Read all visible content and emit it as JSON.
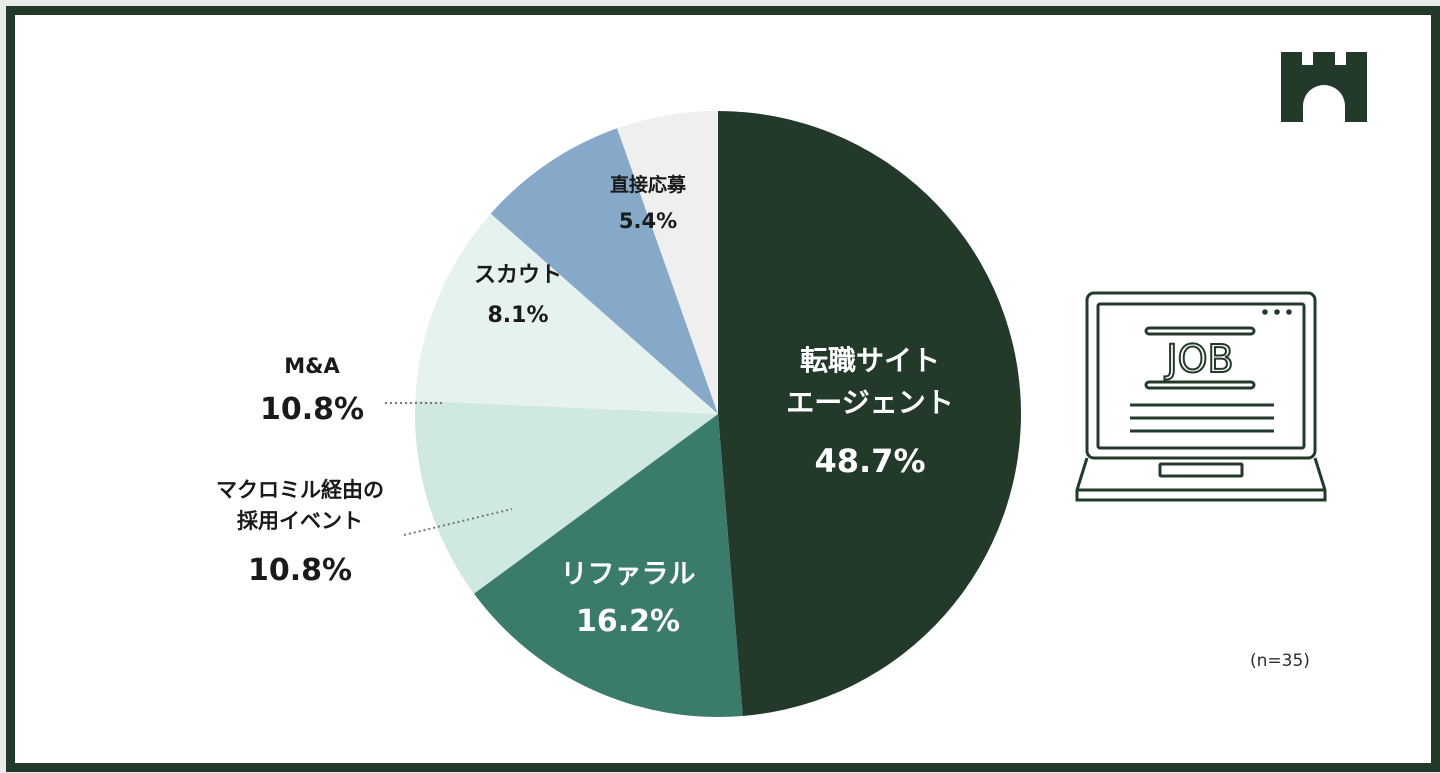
{
  "chart_data": {
    "type": "pie",
    "start_angle_deg": 0,
    "direction": "clockwise",
    "sample_note": "(n=35)",
    "slices": [
      {
        "label": "転職サイト\nエージェント",
        "display": "48.7%",
        "value": 48.7,
        "color": "#233a2a",
        "label_color": "#ffffff"
      },
      {
        "label": "リファラル",
        "display": "16.2%",
        "value": 16.2,
        "color": "#3a7b6c",
        "label_color": "#ffffff"
      },
      {
        "label": "マクロミル経由の\n採用イベント",
        "display": "10.8%",
        "value": 10.8,
        "color": "#cfe8e1",
        "label_color": "#1a1a1a"
      },
      {
        "label": "M&A",
        "display": "10.8%",
        "value": 10.8,
        "color": "#e6f2f0",
        "label_color": "#1a1a1a"
      },
      {
        "label": "スカウト",
        "display": "8.1%",
        "value": 8.1,
        "color": "#86a9c9",
        "label_color": "#1a1a1a"
      },
      {
        "label": "直接応募",
        "display": "5.4%",
        "value": 5.4,
        "color": "#efefef",
        "label_color": "#1a1a1a"
      }
    ]
  },
  "laptop": {
    "screen_text": "JOB"
  },
  "colors": {
    "frame": "#233a2a",
    "background": "#ffffff"
  },
  "icons": [
    "castle-logo-icon",
    "laptop-job-icon"
  ]
}
